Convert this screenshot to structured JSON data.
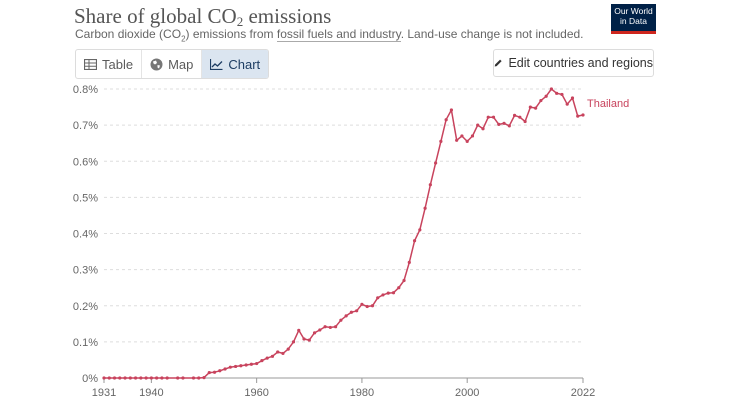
{
  "header": {
    "title_main": "Share of global CO",
    "title_sub": "2",
    "title_rest": " emissions",
    "subtitle_pre": "Carbon dioxide (CO",
    "subtitle_sub": "2",
    "subtitle_mid": ") emissions from ",
    "subtitle_link": "fossil fuels and industry",
    "subtitle_post": ". Land-use change is not included."
  },
  "logo": {
    "line1": "Our World",
    "line2": "in Data"
  },
  "tabs": [
    {
      "label": "Table",
      "icon": "table-icon"
    },
    {
      "label": "Map",
      "icon": "globe-icon"
    },
    {
      "label": "Chart",
      "icon": "line-chart-icon"
    }
  ],
  "edit_button": {
    "label": "Edit countries and regions",
    "icon": "pencil-icon"
  },
  "colors": {
    "series": "#c8435d",
    "grid": "#dddddd",
    "active_tab": "#dbe5f0"
  },
  "chart_data": {
    "type": "line",
    "title": "Share of global CO2 emissions",
    "xlabel": "",
    "ylabel": "",
    "xlim": [
      1931,
      2022
    ],
    "ylim": [
      0,
      0.8
    ],
    "y_ticks": [
      "0%",
      "0.1%",
      "0.2%",
      "0.3%",
      "0.4%",
      "0.5%",
      "0.6%",
      "0.7%",
      "0.8%"
    ],
    "x_ticks": [
      1931,
      1940,
      1960,
      1980,
      2000,
      2022
    ],
    "series": [
      {
        "name": "Thailand",
        "x": [
          1931,
          1932,
          1933,
          1934,
          1935,
          1936,
          1937,
          1938,
          1939,
          1940,
          1941,
          1942,
          1943,
          1945,
          1946,
          1948,
          1949,
          1950,
          1951,
          1952,
          1953,
          1954,
          1955,
          1956,
          1957,
          1958,
          1959,
          1960,
          1961,
          1962,
          1963,
          1964,
          1965,
          1966,
          1967,
          1968,
          1969,
          1970,
          1971,
          1972,
          1973,
          1974,
          1975,
          1976,
          1977,
          1978,
          1979,
          1980,
          1981,
          1982,
          1983,
          1984,
          1985,
          1986,
          1987,
          1988,
          1989,
          1990,
          1991,
          1992,
          1993,
          1994,
          1995,
          1996,
          1997,
          1998,
          1999,
          2000,
          2001,
          2002,
          2003,
          2004,
          2005,
          2006,
          2007,
          2008,
          2009,
          2010,
          2011,
          2012,
          2013,
          2014,
          2015,
          2016,
          2017,
          2018,
          2019,
          2020,
          2021,
          2022
        ],
        "values": [
          0,
          0,
          0,
          0,
          0,
          0,
          0,
          0,
          0,
          0,
          0,
          0,
          0,
          0,
          0,
          0,
          0,
          0.001,
          0.015,
          0.016,
          0.02,
          0.025,
          0.03,
          0.032,
          0.034,
          0.036,
          0.038,
          0.04,
          0.048,
          0.055,
          0.06,
          0.072,
          0.068,
          0.08,
          0.1,
          0.132,
          0.108,
          0.105,
          0.125,
          0.133,
          0.142,
          0.14,
          0.142,
          0.16,
          0.172,
          0.182,
          0.186,
          0.204,
          0.198,
          0.2,
          0.222,
          0.23,
          0.235,
          0.236,
          0.25,
          0.27,
          0.32,
          0.38,
          0.41,
          0.47,
          0.535,
          0.595,
          0.655,
          0.715,
          0.742,
          0.658,
          0.67,
          0.655,
          0.67,
          0.7,
          0.69,
          0.722,
          0.722,
          0.702,
          0.705,
          0.698,
          0.727,
          0.722,
          0.71,
          0.75,
          0.747,
          0.768,
          0.78,
          0.8,
          0.788,
          0.785,
          0.758,
          0.775,
          0.725,
          0.728
        ]
      }
    ]
  }
}
